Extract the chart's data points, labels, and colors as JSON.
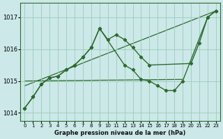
{
  "title": "Graphe pression niveau de la mer (hPa)",
  "background_color": "#cce8e8",
  "line_color": "#2d6b2d",
  "grid_color": "#99ccbb",
  "xlim": [
    -0.5,
    23.5
  ],
  "ylim": [
    1013.75,
    1017.45
  ],
  "yticks": [
    1014,
    1015,
    1016,
    1017
  ],
  "xticks": [
    0,
    1,
    2,
    3,
    4,
    5,
    6,
    7,
    8,
    9,
    10,
    11,
    12,
    13,
    14,
    15,
    16,
    17,
    18,
    19,
    20,
    21,
    22,
    23
  ],
  "line1_x": [
    0,
    1,
    2,
    3,
    4,
    5,
    6,
    7,
    8,
    9,
    10,
    11,
    12,
    13,
    14,
    15,
    20,
    21,
    22,
    23
  ],
  "line1_y": [
    1014.15,
    1014.5,
    1014.9,
    1015.1,
    1015.15,
    1015.35,
    1015.5,
    1015.75,
    1016.05,
    1016.65,
    1016.3,
    1016.45,
    1016.3,
    1016.05,
    1015.75,
    1015.5,
    1015.55,
    1016.2,
    1017.0,
    1017.2
  ],
  "line2_x": [
    0,
    1,
    2,
    3,
    4,
    5,
    6,
    7,
    8,
    9,
    12,
    13,
    14,
    15,
    16,
    17,
    18,
    19,
    22,
    23
  ],
  "line2_y": [
    1014.15,
    1014.5,
    1014.9,
    1015.1,
    1015.15,
    1015.35,
    1015.5,
    1015.75,
    1016.05,
    1016.65,
    1015.5,
    1015.35,
    1015.05,
    1015.0,
    1014.85,
    1014.7,
    1014.7,
    1015.0,
    1017.0,
    1017.2
  ],
  "line3_x": [
    0,
    23
  ],
  "line3_y": [
    1014.85,
    1017.2
  ],
  "line4_x": [
    0,
    19
  ],
  "line4_y": [
    1015.0,
    1015.05
  ]
}
